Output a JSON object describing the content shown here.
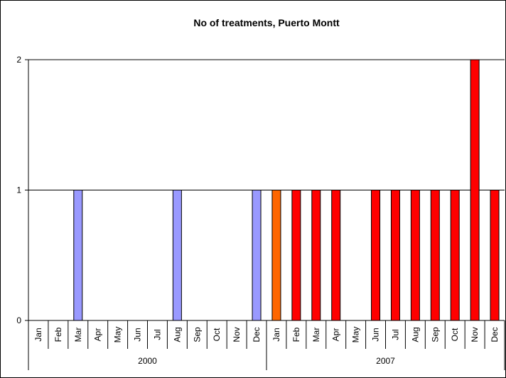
{
  "chart_data": {
    "type": "bar",
    "title": "No of treatments, Puerto Montt",
    "categories": [
      "Jan",
      "Feb",
      "Mar",
      "Apr",
      "May",
      "Jun",
      "Jul",
      "Aug",
      "Sep",
      "Oct",
      "Nov",
      "Dec",
      "Jan",
      "Feb",
      "Mar",
      "Apr",
      "May",
      "Jun",
      "Jul",
      "Aug",
      "Sep",
      "Oct",
      "Nov",
      "Dec"
    ],
    "groups": [
      "2000",
      "2007"
    ],
    "values": [
      0,
      0,
      1,
      0,
      0,
      0,
      0,
      1,
      0,
      0,
      0,
      1,
      1,
      1,
      1,
      1,
      0,
      1,
      1,
      1,
      1,
      1,
      2,
      1
    ],
    "colors": [
      "#9999ff",
      "#9999ff",
      "#9999ff",
      "#9999ff",
      "#9999ff",
      "#9999ff",
      "#9999ff",
      "#9999ff",
      "#9999ff",
      "#9999ff",
      "#9999ff",
      "#9999ff",
      "#ff6600",
      "#ff0000",
      "#ff0000",
      "#ff0000",
      "#ff0000",
      "#ff0000",
      "#ff0000",
      "#ff0000",
      "#ff0000",
      "#ff0000",
      "#ff0000",
      "#ff0000"
    ],
    "ylim": [
      0,
      2
    ],
    "yticks": [
      0,
      1,
      2
    ],
    "grid": true
  }
}
